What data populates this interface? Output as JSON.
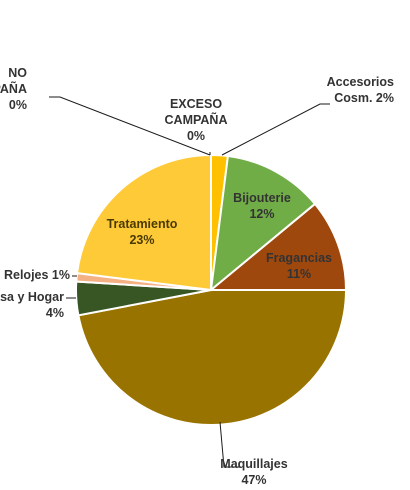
{
  "chart_data": {
    "type": "pie",
    "start_angle_deg": 0,
    "direction": "clockwise",
    "slices": [
      {
        "name": "EXCESO CAMPAÑA",
        "value": 0,
        "label": [
          "EXCESO",
          "CAMPAÑA",
          "0%"
        ],
        "color": "#000000"
      },
      {
        "name": "Accesorios Cosm.",
        "value": 2,
        "label": [
          "Accesorios",
          "Cosm. 2%"
        ],
        "color": "#FFC000"
      },
      {
        "name": "Bijouterie",
        "value": 12,
        "label": [
          "Bijouterie",
          "12%"
        ],
        "color": "#70AD47"
      },
      {
        "name": "Fragancias",
        "value": 11,
        "label": [
          "Fragancias",
          "11%"
        ],
        "color": "#9E480E"
      },
      {
        "name": "Maquillajes",
        "value": 47,
        "label": [
          "Maquillajes",
          "47%"
        ],
        "color": "#997300"
      },
      {
        "name": "Casa y Hogar",
        "value": 4,
        "label": [
          "Casa y Hogar",
          "4%"
        ],
        "color": "#375623"
      },
      {
        "name": "Relojes",
        "value": 1,
        "label": [
          "Relojes 1%"
        ],
        "color": "#F4B183"
      },
      {
        "name": "Tratamiento",
        "value": 23,
        "label": [
          "Tratamiento",
          "23%"
        ],
        "color": "#FFCA38"
      },
      {
        "name": "NO CAMPAÑA",
        "value": 0,
        "label": [
          "NO",
          "CAMPAÑA",
          "0%"
        ],
        "color": "#000000"
      }
    ]
  }
}
